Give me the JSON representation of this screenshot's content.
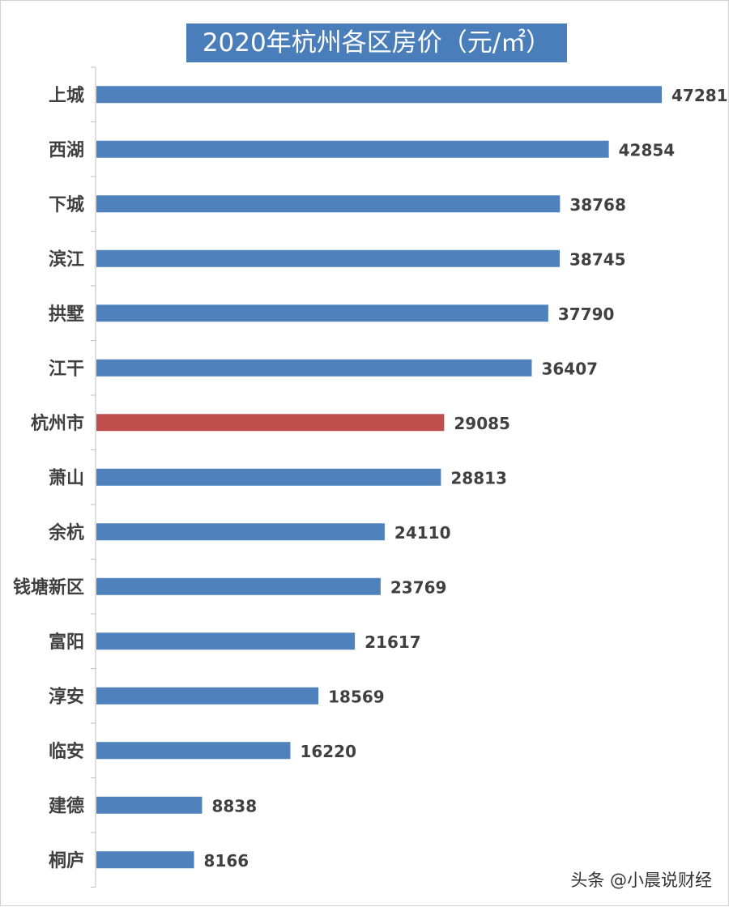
{
  "chart_data": {
    "type": "bar",
    "orientation": "horizontal",
    "title": "2020年杭州各区房价（元/㎡）",
    "categories": [
      "上城",
      "西湖",
      "下城",
      "滨江",
      "拱墅",
      "江干",
      "杭州市",
      "萧山",
      "余杭",
      "钱塘新区",
      "富阳",
      "淳安",
      "临安",
      "建德",
      "桐庐"
    ],
    "values": [
      47281,
      42854,
      38768,
      38745,
      37790,
      36407,
      29085,
      28813,
      24110,
      23769,
      21617,
      18569,
      16220,
      8838,
      8166
    ],
    "highlight_category": "杭州市",
    "colors": {
      "bar": "#4f81bd",
      "highlight": "#c0504d",
      "title_bg": "#4a7ebb",
      "title_text": "#ffffff"
    },
    "xlim": [
      0,
      48000
    ],
    "grid": false,
    "data_labels": true
  },
  "watermark": "头条 @小晨说财经"
}
